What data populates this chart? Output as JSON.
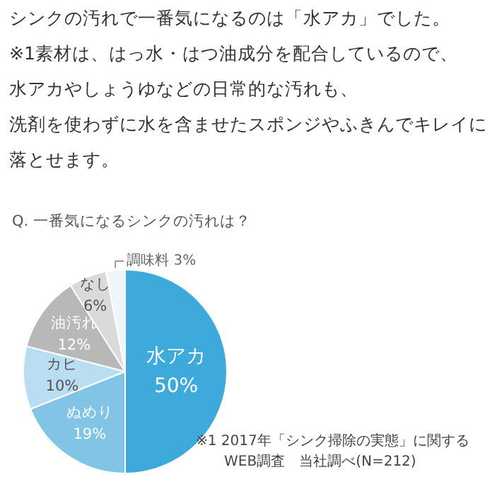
{
  "chart_data": {
    "type": "pie",
    "subtitle": "シンクの汚れで一番気になるのは「水アカ」でした。※1素材は、はっ水・はつ油成分を配合しているので、水アカやしょうゆなどの日常的な汚れも、洗剤を使わずに水を含ませたスポンジやふきんでキレイに落とせます。",
    "title": "Q. 一番気になるシンクの汚れは？",
    "categories": [
      "水アカ",
      "ぬめり",
      "カビ",
      "油汚れ",
      "なし",
      "調味料"
    ],
    "values": [
      50,
      19,
      10,
      12,
      6,
      3
    ],
    "value_labels": [
      "50%",
      "19%",
      "10%",
      "12%",
      "6%",
      "3%"
    ],
    "colors": [
      "#3eaadc",
      "#82c4e6",
      "#b9def2",
      "#b8b8b8",
      "#dadada",
      "#eef6fb"
    ],
    "annotations": [
      "※1 2017年「シンク掃除の実態」に関する\n　　WEB調査　当社調べ(N=212)"
    ]
  }
}
